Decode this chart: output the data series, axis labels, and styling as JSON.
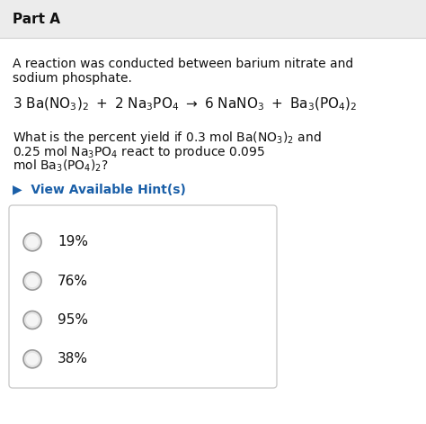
{
  "title": "Part A",
  "title_fontsize": 11,
  "title_fontweight": "bold",
  "bg_color": "#f0f0f0",
  "content_bg": "#ffffff",
  "header_bg": "#ececec",
  "intro_line1": "A reaction was conducted between barium nitrate and",
  "intro_line2": "sodium phosphate.",
  "intro_fontsize": 10,
  "equation_fontsize": 11,
  "question_fontsize": 10,
  "hint_text": "▶  View Available Hint(s)",
  "hint_color": "#1a5fa8",
  "hint_fontsize": 10,
  "choices": [
    "19%",
    "76%",
    "95%",
    "38%"
  ],
  "choice_fontsize": 11,
  "radio_edge_color": "#aaaaaa",
  "radio_face_color": "#e8e8e8",
  "box_edge_color": "#cccccc",
  "box_face_color": "#ffffff"
}
